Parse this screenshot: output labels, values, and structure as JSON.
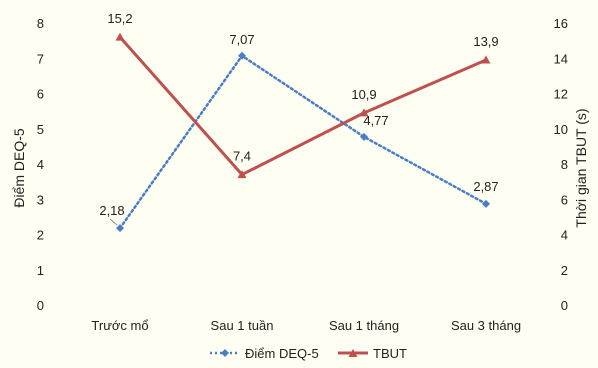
{
  "chart_data": {
    "type": "line",
    "categories": [
      "Trước mổ",
      "Sau 1 tuần",
      "Sau 1 tháng",
      "Sau 3 tháng"
    ],
    "series": [
      {
        "name": "Điểm DEQ-5",
        "axis": "left",
        "values": [
          2.18,
          7.07,
          4.77,
          2.87
        ],
        "labels": [
          "2,18",
          "7,07",
          "4,77",
          "2,87"
        ],
        "color": "#4a7ec4",
        "style": "dotted",
        "marker": "diamond"
      },
      {
        "name": "TBUT",
        "axis": "right",
        "values": [
          15.2,
          7.4,
          10.9,
          13.9
        ],
        "labels": [
          "15,2",
          "7,4",
          "10,9",
          "13,9"
        ],
        "color": "#c0504d",
        "style": "solid",
        "marker": "triangle"
      }
    ],
    "ylabel": "Điểm DEQ-5",
    "y2label": "Thời gian TBUT (s)",
    "ylim": [
      0,
      8
    ],
    "y2lim": [
      0,
      16
    ],
    "yticks": [
      "0",
      "1",
      "2",
      "3",
      "4",
      "5",
      "6",
      "7",
      "8"
    ],
    "y2ticks": [
      "0",
      "2",
      "4",
      "6",
      "8",
      "10",
      "12",
      "14",
      "16"
    ],
    "grid": false,
    "legend": "bottom"
  }
}
